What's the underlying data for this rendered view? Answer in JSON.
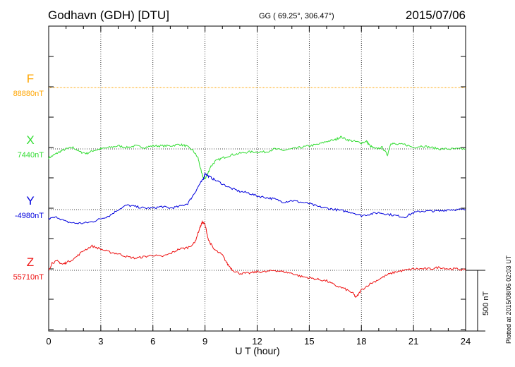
{
  "chart_data": {
    "type": "line",
    "title": "Godhavn (GDH)  [DTU]",
    "subtitle": "GG ( 69.25°, 306.47°)",
    "date": "2015/07/06",
    "xlabel": "U T (hour)",
    "xlim": [
      0,
      24
    ],
    "x_ticks": [
      "0",
      "3",
      "6",
      "9",
      "12",
      "15",
      "18",
      "21",
      "24"
    ],
    "scale_label": "500 nT",
    "plotted_note": "Plotted at 2015/08/06 02:03 UT",
    "grid": true,
    "series": [
      {
        "name": "F",
        "baseline_label": "88880nT",
        "color": "#ffa500",
        "offset_nT": 0,
        "x": [
          0,
          24
        ],
        "values": [
          0,
          0
        ]
      },
      {
        "name": "X",
        "baseline_label": "7440nT",
        "color": "#33dd33",
        "offset_nT": 0,
        "x": [
          0,
          0.3,
          0.6,
          1.0,
          1.4,
          1.8,
          2.2,
          2.6,
          3.0,
          3.5,
          4.0,
          4.5,
          5.0,
          5.5,
          6.0,
          6.5,
          7.0,
          7.5,
          7.9,
          8.3,
          8.6,
          8.8,
          8.95,
          9.1,
          9.3,
          9.6,
          10.0,
          10.5,
          11.0,
          11.5,
          12.0,
          12.5,
          13.0,
          13.5,
          14.0,
          14.5,
          15.0,
          15.5,
          16.0,
          16.5,
          16.8,
          17.2,
          17.6,
          18.0,
          18.3,
          18.5,
          18.8,
          19.2,
          19.5,
          19.7,
          20.0,
          20.5,
          21.0,
          21.5,
          22.0,
          22.5,
          23.0,
          23.5,
          24.0
        ],
        "values": [
          -75,
          -50,
          -25,
          0,
          12,
          -25,
          -37,
          -12,
          0,
          12,
          25,
          12,
          25,
          12,
          25,
          25,
          25,
          37,
          25,
          -12,
          -75,
          -200,
          -250,
          -225,
          -150,
          -100,
          -75,
          -50,
          -37,
          -25,
          -25,
          -25,
          0,
          -12,
          0,
          12,
          25,
          37,
          62,
          75,
          100,
          75,
          62,
          50,
          62,
          25,
          0,
          12,
          -50,
          50,
          37,
          37,
          12,
          25,
          12,
          0,
          0,
          0,
          0
        ]
      },
      {
        "name": "Y",
        "baseline_label": "-4980nT",
        "color": "#0000dd",
        "offset_nT": 0,
        "x": [
          0,
          0.5,
          1.0,
          1.5,
          2.0,
          2.5,
          3.0,
          3.5,
          4.0,
          4.5,
          5.0,
          5.5,
          6.0,
          6.5,
          7.0,
          7.5,
          8.0,
          8.4,
          8.7,
          8.9,
          9.0,
          9.2,
          9.5,
          10.0,
          10.5,
          11.0,
          11.5,
          12.0,
          12.5,
          13.0,
          13.5,
          14.0,
          14.5,
          15.0,
          15.5,
          16.0,
          16.5,
          17.0,
          17.5,
          18.0,
          18.5,
          19.0,
          19.5,
          20.0,
          20.5,
          21.0,
          21.5,
          22.0,
          22.5,
          23.0,
          23.5,
          24.0
        ],
        "values": [
          -75,
          -62,
          -100,
          -112,
          -112,
          -100,
          -75,
          -50,
          0,
          37,
          25,
          12,
          12,
          25,
          12,
          25,
          50,
          137,
          212,
          250,
          300,
          275,
          250,
          212,
          175,
          150,
          137,
          112,
          100,
          87,
          62,
          75,
          62,
          50,
          25,
          12,
          0,
          -12,
          -25,
          -50,
          -37,
          -25,
          -37,
          -50,
          -62,
          -25,
          -12,
          -12,
          -12,
          0,
          0,
          0
        ]
      },
      {
        "name": "Z",
        "baseline_label": "55710nT",
        "color": "#ee1111",
        "offset_nT": 0,
        "x": [
          0,
          0.2,
          0.5,
          0.8,
          1.0,
          1.5,
          2.0,
          2.5,
          3.0,
          3.5,
          4.0,
          4.5,
          5.0,
          5.5,
          6.0,
          6.5,
          7.0,
          7.5,
          8.0,
          8.4,
          8.7,
          8.85,
          9.0,
          9.2,
          9.5,
          10.0,
          10.3,
          10.6,
          11.0,
          11.5,
          12.0,
          12.5,
          13.0,
          13.5,
          14.0,
          14.5,
          15.0,
          15.5,
          16.0,
          16.5,
          17.0,
          17.5,
          17.7,
          18.0,
          18.5,
          19.0,
          19.5,
          20.0,
          20.5,
          21.0,
          21.5,
          22.0,
          22.5,
          23.0,
          23.5,
          24.0
        ],
        "values": [
          0,
          62,
          75,
          50,
          62,
          100,
          162,
          200,
          175,
          150,
          137,
          112,
          100,
          112,
          125,
          112,
          137,
          175,
          187,
          225,
          350,
          400,
          375,
          250,
          175,
          125,
          50,
          0,
          -25,
          -25,
          -12,
          -12,
          0,
          -12,
          -25,
          -50,
          -62,
          -75,
          -87,
          -125,
          -150,
          -187,
          -225,
          -162,
          -112,
          -75,
          -37,
          -12,
          0,
          12,
          12,
          12,
          25,
          12,
          12,
          0
        ]
      }
    ]
  }
}
